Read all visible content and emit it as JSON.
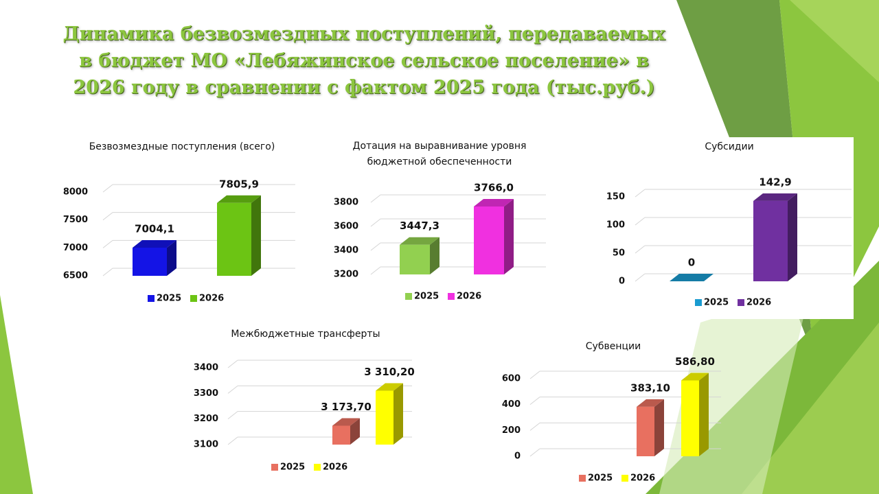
{
  "title": "Динамика безвозмездных поступлений, передаваемых в бюджет МО «Лебяжинское сельское поселение» в 2026 году в сравнении с фактом 2025 года (тыс.руб.)",
  "chart_data": [
    {
      "type": "bar",
      "title": "Безвозмездные поступления (всего)",
      "ylim": [
        6500,
        8000
      ],
      "yticks": [
        6500,
        7000,
        7500,
        8000
      ],
      "grid": true,
      "series": [
        {
          "name": "2025",
          "color": "#1414e6",
          "values": [
            7004.1
          ],
          "value_labels": [
            "7004,1"
          ]
        },
        {
          "name": "2026",
          "color": "#6cc414",
          "values": [
            7805.9
          ],
          "value_labels": [
            "7805,9"
          ]
        }
      ]
    },
    {
      "type": "bar",
      "title": "Дотация на выравнивание уровня бюджетной обеспеченности",
      "ylim": [
        3200,
        3800
      ],
      "yticks": [
        3200,
        3400,
        3600,
        3800
      ],
      "grid": true,
      "series": [
        {
          "name": "2025",
          "color": "#92d050",
          "values": [
            3447.3
          ],
          "value_labels": [
            "3447,3"
          ]
        },
        {
          "name": "2026",
          "color": "#f030e0",
          "values": [
            3766.0
          ],
          "value_labels": [
            "3766,0"
          ]
        }
      ]
    },
    {
      "type": "bar",
      "title": "Субсидии",
      "ylim": [
        0,
        150
      ],
      "yticks": [
        0,
        50,
        100,
        150
      ],
      "grid": true,
      "series": [
        {
          "name": "2025",
          "color": "#1a9bd0",
          "values": [
            0
          ],
          "value_labels": [
            "0"
          ]
        },
        {
          "name": "2026",
          "color": "#7030a0",
          "values": [
            142.9
          ],
          "value_labels": [
            "142,9"
          ]
        }
      ]
    },
    {
      "type": "bar",
      "title": "Межбюджетные трансферты",
      "ylim": [
        3100,
        3400
      ],
      "yticks": [
        3100,
        3200,
        3300,
        3400
      ],
      "grid": true,
      "series": [
        {
          "name": "2025",
          "color": "#e87060",
          "values": [
            3173.7
          ],
          "value_labels": [
            "3 173,70"
          ]
        },
        {
          "name": "2026",
          "color": "#ffff00",
          "values": [
            3310.2
          ],
          "value_labels": [
            "3 310,20"
          ]
        }
      ]
    },
    {
      "type": "bar",
      "title": "Субвенции",
      "ylim": [
        0,
        600
      ],
      "yticks": [
        0,
        200,
        400,
        600
      ],
      "grid": true,
      "series": [
        {
          "name": "2025",
          "color": "#e87060",
          "values": [
            383.1
          ],
          "value_labels": [
            "383,10"
          ]
        },
        {
          "name": "2026",
          "color": "#ffff00",
          "values": [
            586.8
          ],
          "value_labels": [
            "586,80"
          ]
        }
      ]
    }
  ]
}
